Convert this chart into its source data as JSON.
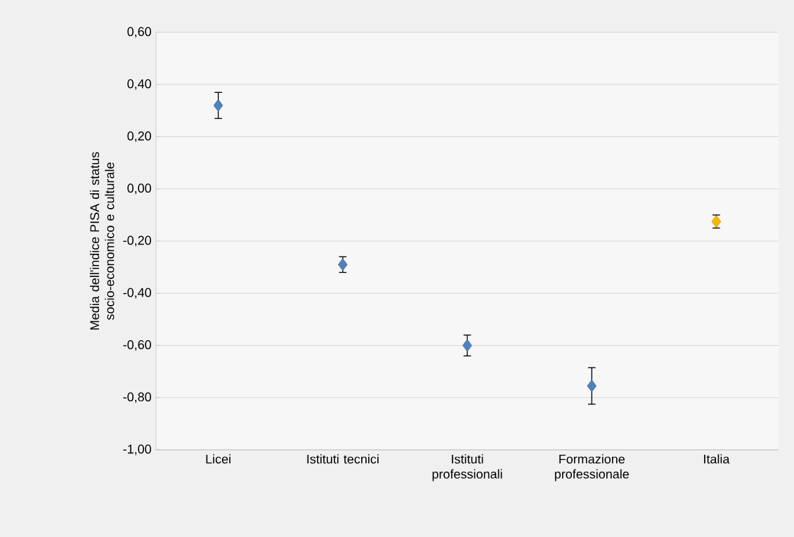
{
  "chart_data": {
    "type": "scatter",
    "ylabel": "Media dell'indice PISA di status socio-economico e culturale",
    "categories": [
      "Licei",
      "Istituti tecnici",
      "Istituti professionali",
      "Formazione professionale",
      "Italia"
    ],
    "values": [
      0.32,
      -0.29,
      -0.6,
      -0.755,
      -0.125
    ],
    "errors": [
      0.05,
      0.03,
      0.04,
      0.07,
      0.025
    ],
    "colors": [
      "#4f81bd",
      "#4f81bd",
      "#4f81bd",
      "#4f81bd",
      "#f5b800"
    ],
    "marker": "diamond",
    "ylim": [
      -1.0,
      0.6
    ],
    "yticks": [
      {
        "value": -1.0,
        "label": "-1,00"
      },
      {
        "value": -0.8,
        "label": "-0,80"
      },
      {
        "value": -0.6,
        "label": "-0,60"
      },
      {
        "value": -0.4,
        "label": "-0,40"
      },
      {
        "value": -0.2,
        "label": "-0,20"
      },
      {
        "value": 0.0,
        "label": "0,00"
      },
      {
        "value": 0.2,
        "label": "0,20"
      },
      {
        "value": 0.4,
        "label": "0,40"
      },
      {
        "value": 0.6,
        "label": "0,60"
      }
    ],
    "grid": "y"
  }
}
